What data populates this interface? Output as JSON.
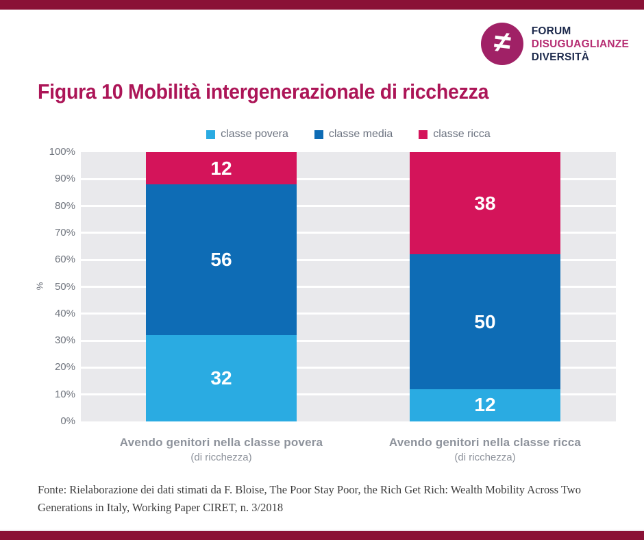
{
  "page": {
    "accent_bar_color": "#8a1136"
  },
  "logo": {
    "symbol": "≠",
    "circle_color": "#a02166",
    "line1": "FORUM",
    "line2": "DISUGUAGLIANZE",
    "line3": "DIVERSITÀ"
  },
  "title": "Figura 10 Mobilità intergenerazionale di ricchezza",
  "chart_data": {
    "type": "bar",
    "stacked": true,
    "title": "Figura 10 Mobilità intergenerazionale di ricchezza",
    "categories": [
      "Avendo genitori nella classe povera",
      "Avendo genitori nella classe ricca"
    ],
    "category_subtitles": [
      "(di ricchezza)",
      "(di ricchezza)"
    ],
    "series": [
      {
        "name": "classe povera",
        "color": "#2aabe2",
        "values": [
          32,
          12
        ]
      },
      {
        "name": "classe media",
        "color": "#0e6cb5",
        "values": [
          56,
          50
        ]
      },
      {
        "name": "classe ricca",
        "color": "#d4145a",
        "values": [
          12,
          38
        ]
      }
    ],
    "xlabel": "",
    "ylabel": "%",
    "ylim": [
      0,
      100
    ],
    "y_ticks": [
      "0%",
      "10%",
      "20%",
      "30%",
      "40%",
      "50%",
      "60%",
      "70%",
      "80%",
      "90%",
      "100%"
    ],
    "grid": true,
    "plot_background": "#e9e9ec",
    "gridline_color": "#ffffff",
    "legend_position": "top"
  },
  "source": "Fonte: Rielaborazione dei dati stimati da F. Bloise, The Poor Stay Poor, the Rich Get Rich: Wealth Mobility Across Two Generations in Italy, Working Paper CIRET, n. 3/2018"
}
